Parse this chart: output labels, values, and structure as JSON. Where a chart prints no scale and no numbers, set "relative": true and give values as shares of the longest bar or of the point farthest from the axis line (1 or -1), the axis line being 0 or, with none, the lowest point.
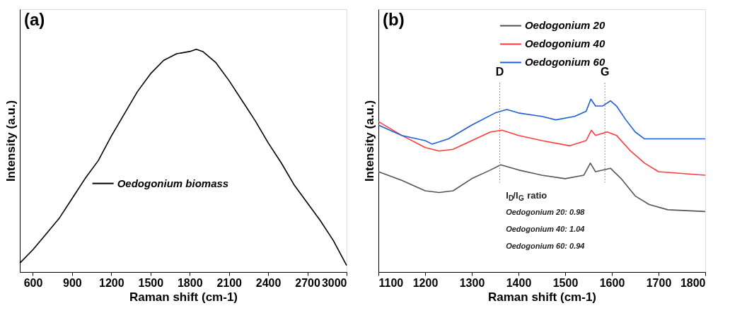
{
  "chart_data": [
    {
      "type": "line",
      "title": "(a)",
      "xlabel": "Raman shift (cm-1)",
      "ylabel": "Intensity (a.u.)",
      "relative": true,
      "xlim": [
        500,
        3000
      ],
      "xticks": [
        600,
        900,
        1200,
        1500,
        1800,
        2100,
        2400,
        2700,
        3000
      ],
      "tick_labels": "x",
      "grid": false,
      "legend": "left",
      "line_style": "solid",
      "series": [
        {
          "name": "Oedogonium biomass",
          "color": "#000000",
          "x": [
            500,
            600,
            700,
            800,
            900,
            1000,
            1100,
            1200,
            1300,
            1400,
            1500,
            1600,
            1700,
            1800,
            1850,
            1900,
            2000,
            2100,
            2200,
            2300,
            2400,
            2500,
            2600,
            2700,
            2800,
            2900,
            3000
          ],
          "values": [
            0.04,
            0.1,
            0.17,
            0.24,
            0.33,
            0.42,
            0.5,
            0.61,
            0.71,
            0.81,
            0.89,
            0.95,
            0.98,
            0.99,
            1.0,
            0.99,
            0.94,
            0.86,
            0.77,
            0.68,
            0.58,
            0.49,
            0.39,
            0.31,
            0.23,
            0.14,
            0.03
          ]
        }
      ]
    },
    {
      "type": "line",
      "title": "(b)",
      "xlabel": "Raman shift (cm-1)",
      "ylabel": "Intensity (a.u.)",
      "relative": true,
      "xlim": [
        1100,
        1800
      ],
      "xticks": [
        1100,
        1200,
        1300,
        1400,
        1500,
        1600,
        1700,
        1800
      ],
      "tick_labels": "x",
      "grid": false,
      "legend": "top",
      "line_style": "solid",
      "ref_lines": [
        {
          "axis": "x",
          "value": 1360,
          "label": "D",
          "color": "#888888",
          "line_style": "dotted"
        },
        {
          "axis": "x",
          "value": 1585,
          "label": "G",
          "color": "#888888",
          "line_style": "dotted"
        }
      ],
      "annotations": [
        "I$_{D}$/I$_{G}$ ratio",
        "Oedogonium 20: 0.98",
        "Oedogonium 40: 1.04",
        "Oedogonium 60: 0.94"
      ],
      "series": [
        {
          "name": "Oedogonium 20",
          "color": "#555555",
          "x": [
            1100,
            1150,
            1200,
            1230,
            1260,
            1300,
            1340,
            1362,
            1400,
            1450,
            1500,
            1540,
            1554,
            1565,
            1597,
            1620,
            1650,
            1680,
            1720,
            1800
          ],
          "values": [
            0.58,
            0.53,
            0.47,
            0.46,
            0.47,
            0.54,
            0.59,
            0.62,
            0.59,
            0.56,
            0.54,
            0.56,
            0.63,
            0.58,
            0.6,
            0.54,
            0.44,
            0.39,
            0.36,
            0.35
          ]
        },
        {
          "name": "Oedogonium 40",
          "color": "#ff3b3b",
          "x": [
            1100,
            1150,
            1200,
            1230,
            1260,
            1300,
            1340,
            1365,
            1400,
            1450,
            1510,
            1545,
            1556,
            1565,
            1590,
            1610,
            1640,
            1670,
            1700,
            1750,
            1800
          ],
          "values": [
            0.87,
            0.79,
            0.72,
            0.7,
            0.71,
            0.76,
            0.81,
            0.82,
            0.79,
            0.76,
            0.73,
            0.76,
            0.82,
            0.79,
            0.81,
            0.79,
            0.7,
            0.63,
            0.58,
            0.57,
            0.56
          ]
        },
        {
          "name": "Oedogonium 60",
          "color": "#1f5fd6",
          "x": [
            1100,
            1150,
            1200,
            1215,
            1250,
            1300,
            1350,
            1375,
            1400,
            1450,
            1480,
            1520,
            1545,
            1555,
            1565,
            1580,
            1597,
            1610,
            1630,
            1650,
            1670,
            1700,
            1750,
            1800
          ],
          "values": [
            0.85,
            0.79,
            0.76,
            0.74,
            0.77,
            0.85,
            0.92,
            0.94,
            0.92,
            0.9,
            0.88,
            0.9,
            0.93,
            1.0,
            0.96,
            0.96,
            0.99,
            0.96,
            0.88,
            0.81,
            0.77,
            0.77,
            0.77,
            0.77
          ]
        }
      ]
    }
  ]
}
